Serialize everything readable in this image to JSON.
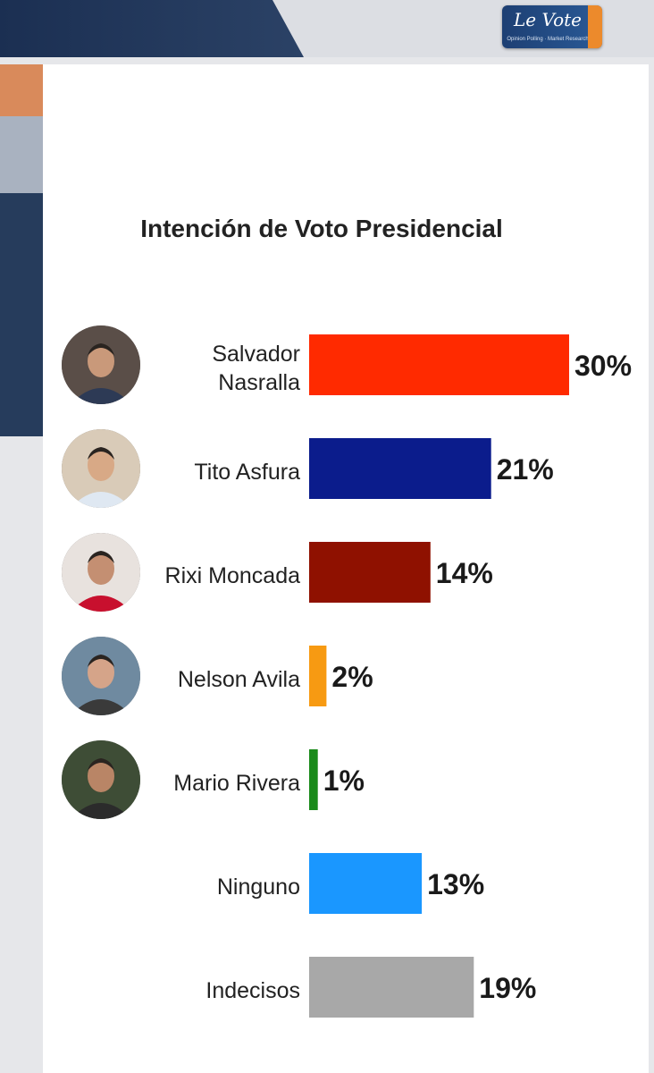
{
  "brand": {
    "logo_text": "Le Vote",
    "logo_subtitle": "Opinion Polling · Market Research"
  },
  "colors": {
    "Salvador Nasralla": "#ff2a00",
    "Tito Asfura": "#0b1c8c",
    "Rixi Moncada": "#8f1100",
    "Nelson Avila": "#f79a12",
    "Mario Rivera": "#1a8a1a",
    "Ninguno": "#1a97ff",
    "Indecisos": "#a8a8a8"
  },
  "chart_data": {
    "type": "bar",
    "orientation": "horizontal",
    "title": "Intención de Voto Presidencial",
    "categories": [
      "Salvador Nasralla",
      "Tito Asfura",
      "Rixi Moncada",
      "Nelson Avila",
      "Mario Rivera",
      "Ninguno",
      "Indecisos"
    ],
    "values": [
      30,
      21,
      14,
      2,
      1,
      13,
      19
    ],
    "value_labels": [
      "30%",
      "21%",
      "14%",
      "2%",
      "1%",
      "13%",
      "19%"
    ],
    "label_lines": [
      [
        "Salvador",
        "Nasralla"
      ],
      [
        "Tito Asfura"
      ],
      [
        "Rixi Moncada"
      ],
      [
        "Nelson Avila"
      ],
      [
        "Mario Rivera"
      ],
      [
        "Ninguno"
      ],
      [
        "Indecisos"
      ]
    ],
    "candidate_photos": [
      "Salvador Nasralla",
      "Tito Asfura",
      "Rixi Moncada",
      "Nelson Avila",
      "Mario Rivera"
    ],
    "grid": false,
    "legend": "none"
  }
}
